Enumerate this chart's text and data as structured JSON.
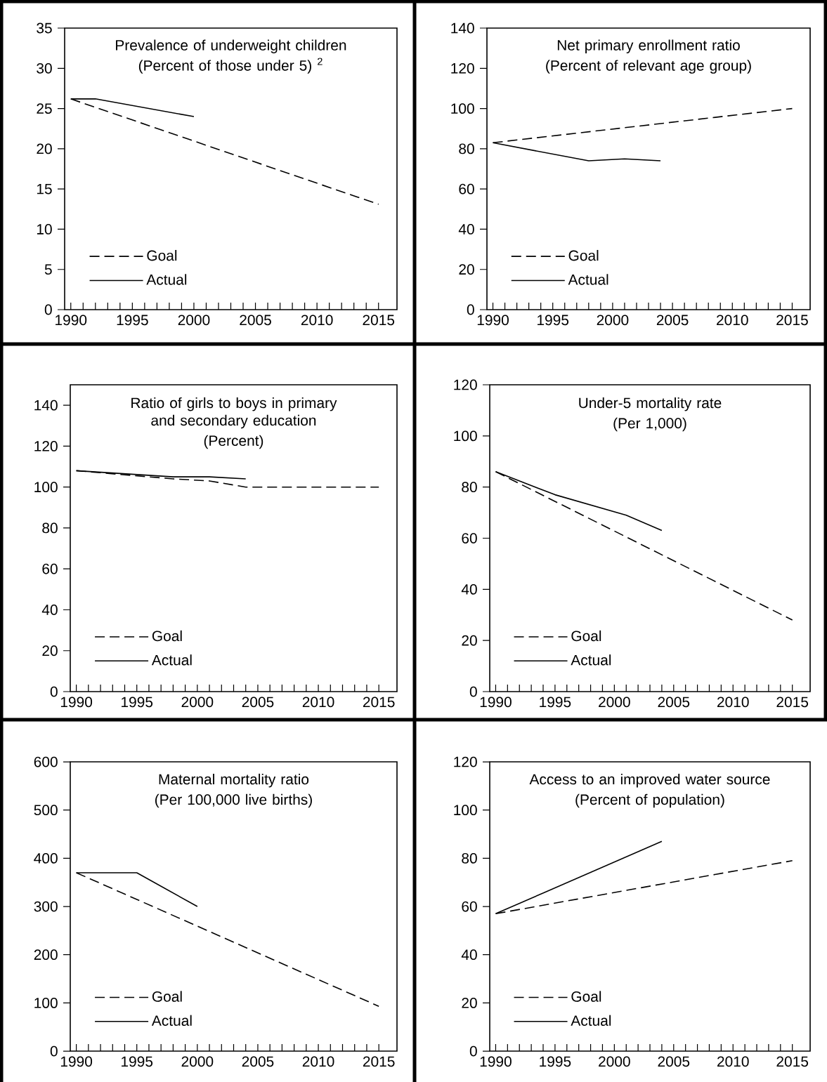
{
  "chart_data": [
    {
      "type": "line",
      "title": "Prevalence of underweight children",
      "subtitle": "(Percent of those under 5) $^{2}$",
      "xlim": [
        1989.5,
        2016.5
      ],
      "ylim": [
        0,
        35
      ],
      "yticks": [
        0,
        5,
        10,
        15,
        20,
        25,
        30,
        35
      ],
      "xticks": [
        1990,
        {
          "value": 1991,
          "label": null
        },
        {
          "value": 1992,
          "label": null
        },
        {
          "value": 1993,
          "label": null
        },
        {
          "value": 1994,
          "label": null
        },
        1995,
        {
          "value": 1996,
          "label": null
        },
        {
          "value": 1997,
          "label": null
        },
        {
          "value": 1998,
          "label": null
        },
        {
          "value": 1999,
          "label": null
        },
        2000,
        {
          "value": 2001,
          "label": null
        },
        {
          "value": 2002,
          "label": null
        },
        {
          "value": 2003,
          "label": null
        },
        {
          "value": 2004,
          "label": null
        },
        2005,
        {
          "value": 2006,
          "label": null
        },
        {
          "value": 2007,
          "label": null
        },
        {
          "value": 2008,
          "label": null
        },
        {
          "value": 2009,
          "label": null
        },
        2010,
        {
          "value": 2011,
          "label": null
        },
        {
          "value": 2012,
          "label": null
        },
        {
          "value": 2013,
          "label": null
        },
        {
          "value": 2014,
          "label": null
        },
        2015
      ],
      "legend": "bottom left",
      "series": [
        {
          "name": "Goal",
          "color": "#000000",
          "line_style": "dashed",
          "x": [
            1990,
            2015
          ],
          "values": [
            26.2,
            13.1
          ]
        },
        {
          "name": "Actual",
          "color": "#000000",
          "line_style": "solid",
          "x": [
            1990,
            1992,
            2000
          ],
          "values": [
            26.2,
            26.2,
            24
          ]
        }
      ]
    },
    {
      "type": "line",
      "title": "Net primary enrollment ratio",
      "subtitle": "(Percent of relevant age group)",
      "xlim": [
        1989.5,
        2016.5
      ],
      "ylim": [
        0,
        140
      ],
      "yticks": [
        0,
        20,
        40,
        60,
        80,
        100,
        120,
        140
      ],
      "xticks": [
        1990,
        {
          "value": 1991,
          "label": null
        },
        {
          "value": 1992,
          "label": null
        },
        {
          "value": 1993,
          "label": null
        },
        {
          "value": 1994,
          "label": null
        },
        1995,
        {
          "value": 1996,
          "label": null
        },
        {
          "value": 1997,
          "label": null
        },
        {
          "value": 1998,
          "label": null
        },
        {
          "value": 1999,
          "label": null
        },
        2000,
        {
          "value": 2001,
          "label": null
        },
        {
          "value": 2002,
          "label": null
        },
        {
          "value": 2003,
          "label": null
        },
        {
          "value": 2004,
          "label": null
        },
        2005,
        {
          "value": 2006,
          "label": null
        },
        {
          "value": 2007,
          "label": null
        },
        {
          "value": 2008,
          "label": null
        },
        {
          "value": 2009,
          "label": null
        },
        2010,
        {
          "value": 2011,
          "label": null
        },
        {
          "value": 2012,
          "label": null
        },
        {
          "value": 2013,
          "label": null
        },
        {
          "value": 2014,
          "label": null
        },
        2015
      ],
      "legend": "bottom left",
      "series": [
        {
          "name": "Goal",
          "color": "#000000",
          "line_style": "dashed",
          "x": [
            1990,
            2015
          ],
          "values": [
            83,
            100
          ]
        },
        {
          "name": "Actual",
          "color": "#000000",
          "line_style": "solid",
          "x": [
            1990,
            1998,
            2001,
            2004
          ],
          "values": [
            83,
            74,
            75,
            74
          ]
        }
      ]
    },
    {
      "type": "line",
      "title": "Ratio of girls to boys in primary and secondary education",
      "subtitle": "(Percent)",
      "xlim": [
        1989.5,
        2016.5
      ],
      "ylim": [
        0,
        150
      ],
      "yticks": [
        0,
        20,
        40,
        60,
        80,
        100,
        120,
        140
      ],
      "xticks": [
        1990,
        {
          "value": 1991,
          "label": null
        },
        {
          "value": 1992,
          "label": null
        },
        {
          "value": 1993,
          "label": null
        },
        {
          "value": 1994,
          "label": null
        },
        1995,
        {
          "value": 1996,
          "label": null
        },
        {
          "value": 1997,
          "label": null
        },
        {
          "value": 1998,
          "label": null
        },
        {
          "value": 1999,
          "label": null
        },
        2000,
        {
          "value": 2001,
          "label": null
        },
        {
          "value": 2002,
          "label": null
        },
        {
          "value": 2003,
          "label": null
        },
        {
          "value": 2004,
          "label": null
        },
        2005,
        {
          "value": 2006,
          "label": null
        },
        {
          "value": 2007,
          "label": null
        },
        {
          "value": 2008,
          "label": null
        },
        {
          "value": 2009,
          "label": null
        },
        2010,
        {
          "value": 2011,
          "label": null
        },
        {
          "value": 2012,
          "label": null
        },
        {
          "value": 2013,
          "label": null
        },
        {
          "value": 2014,
          "label": null
        },
        2015
      ],
      "legend": "bottom left",
      "series": [
        {
          "name": "Goal",
          "color": "#000000",
          "line_style": "dashed",
          "x": [
            1990,
            1998,
            2001,
            2004,
            2015
          ],
          "values": [
            108,
            104,
            103,
            100,
            100
          ]
        },
        {
          "name": "Actual",
          "color": "#000000",
          "line_style": "solid",
          "x": [
            1990,
            1998,
            2001,
            2004
          ],
          "values": [
            108,
            105,
            105,
            104
          ]
        }
      ]
    },
    {
      "type": "line",
      "title": "Under-5 mortality rate",
      "subtitle": "(Per 1,000)",
      "xlim": [
        1989.5,
        2016.5
      ],
      "ylim": [
        0,
        120
      ],
      "yticks": [
        0,
        20,
        40,
        60,
        80,
        100,
        120
      ],
      "xticks": [
        1990,
        {
          "value": 1991,
          "label": null
        },
        {
          "value": 1992,
          "label": null
        },
        {
          "value": 1993,
          "label": null
        },
        {
          "value": 1994,
          "label": null
        },
        1995,
        {
          "value": 1996,
          "label": null
        },
        {
          "value": 1997,
          "label": null
        },
        {
          "value": 1998,
          "label": null
        },
        {
          "value": 1999,
          "label": null
        },
        2000,
        {
          "value": 2001,
          "label": null
        },
        {
          "value": 2002,
          "label": null
        },
        {
          "value": 2003,
          "label": null
        },
        {
          "value": 2004,
          "label": null
        },
        2005,
        {
          "value": 2006,
          "label": null
        },
        {
          "value": 2007,
          "label": null
        },
        {
          "value": 2008,
          "label": null
        },
        {
          "value": 2009,
          "label": null
        },
        2010,
        {
          "value": 2011,
          "label": null
        },
        {
          "value": 2012,
          "label": null
        },
        {
          "value": 2013,
          "label": null
        },
        {
          "value": 2014,
          "label": null
        },
        2015
      ],
      "legend": "bottom left",
      "series": [
        {
          "name": "Goal",
          "color": "#000000",
          "line_style": "dashed",
          "x": [
            1990,
            2015
          ],
          "values": [
            86,
            28
          ]
        },
        {
          "name": "Actual",
          "color": "#000000",
          "line_style": "solid",
          "x": [
            1990,
            1995,
            2001,
            2004
          ],
          "values": [
            86,
            77,
            69,
            63
          ]
        }
      ]
    },
    {
      "type": "line",
      "title": "Maternal mortality ratio",
      "subtitle": "(Per 100,000 live births)",
      "xlim": [
        1989.5,
        2016.5
      ],
      "ylim": [
        0,
        600
      ],
      "yticks": [
        0,
        100,
        200,
        300,
        400,
        500,
        600
      ],
      "xticks": [
        1990,
        {
          "value": 1991,
          "label": null
        },
        {
          "value": 1992,
          "label": null
        },
        {
          "value": 1993,
          "label": null
        },
        {
          "value": 1994,
          "label": null
        },
        1995,
        {
          "value": 1996,
          "label": null
        },
        {
          "value": 1997,
          "label": null
        },
        {
          "value": 1998,
          "label": null
        },
        {
          "value": 1999,
          "label": null
        },
        2000,
        {
          "value": 2001,
          "label": null
        },
        {
          "value": 2002,
          "label": null
        },
        {
          "value": 2003,
          "label": null
        },
        {
          "value": 2004,
          "label": null
        },
        2005,
        {
          "value": 2006,
          "label": null
        },
        {
          "value": 2007,
          "label": null
        },
        {
          "value": 2008,
          "label": null
        },
        {
          "value": 2009,
          "label": null
        },
        2010,
        {
          "value": 2011,
          "label": null
        },
        {
          "value": 2012,
          "label": null
        },
        {
          "value": 2013,
          "label": null
        },
        {
          "value": 2014,
          "label": null
        },
        2015
      ],
      "legend": "bottom left",
      "series": [
        {
          "name": "Goal",
          "color": "#000000",
          "line_style": "dashed",
          "x": [
            1990,
            2015
          ],
          "values": [
            370,
            93
          ]
        },
        {
          "name": "Actual",
          "color": "#000000",
          "line_style": "solid",
          "x": [
            1990,
            1995,
            2000
          ],
          "values": [
            370,
            370,
            300
          ]
        }
      ]
    },
    {
      "type": "line",
      "title": "Access to an improved water source",
      "subtitle": "(Percent of population)",
      "xlim": [
        1989.5,
        2016.5
      ],
      "ylim": [
        0,
        120
      ],
      "yticks": [
        0,
        20,
        40,
        60,
        80,
        100,
        120
      ],
      "xticks": [
        1990,
        {
          "value": 1991,
          "label": null
        },
        {
          "value": 1992,
          "label": null
        },
        {
          "value": 1993,
          "label": null
        },
        {
          "value": 1994,
          "label": null
        },
        1995,
        {
          "value": 1996,
          "label": null
        },
        {
          "value": 1997,
          "label": null
        },
        {
          "value": 1998,
          "label": null
        },
        {
          "value": 1999,
          "label": null
        },
        2000,
        {
          "value": 2001,
          "label": null
        },
        {
          "value": 2002,
          "label": null
        },
        {
          "value": 2003,
          "label": null
        },
        {
          "value": 2004,
          "label": null
        },
        2005,
        {
          "value": 2006,
          "label": null
        },
        {
          "value": 2007,
          "label": null
        },
        {
          "value": 2008,
          "label": null
        },
        {
          "value": 2009,
          "label": null
        },
        2010,
        {
          "value": 2011,
          "label": null
        },
        {
          "value": 2012,
          "label": null
        },
        {
          "value": 2013,
          "label": null
        },
        {
          "value": 2014,
          "label": null
        },
        2015
      ],
      "legend": "bottom left",
      "series": [
        {
          "name": "Goal",
          "color": "#000000",
          "line_style": "dashed",
          "x": [
            1990,
            2015
          ],
          "values": [
            57,
            79
          ]
        },
        {
          "name": "Actual",
          "color": "#000000",
          "line_style": "solid",
          "x": [
            1990,
            2004
          ],
          "values": [
            57,
            87
          ]
        }
      ]
    }
  ]
}
